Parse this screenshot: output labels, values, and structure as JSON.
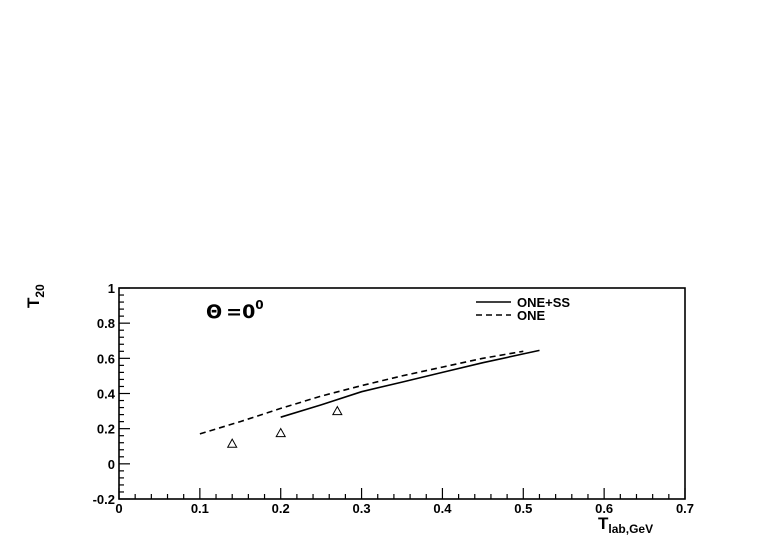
{
  "chart_data": {
    "type": "line",
    "title": "",
    "xlabel": "T",
    "xlabel_sub": "lab,GeV",
    "ylabel": "T",
    "ylabel_sub": "20",
    "xlim": [
      0,
      0.7
    ],
    "ylim": [
      -0.2,
      1.0
    ],
    "x_ticks": [
      0,
      0.1,
      0.2,
      0.3,
      0.4,
      0.5,
      0.6,
      0.7
    ],
    "x_tick_labels": [
      "0",
      "0.1",
      "0.2",
      "0.3",
      "0.4",
      "0.5",
      "0.6",
      "0.7"
    ],
    "y_ticks": [
      -0.2,
      0,
      0.2,
      0.4,
      0.6,
      0.8,
      1.0
    ],
    "y_tick_labels": [
      "-0.2",
      "0",
      "0.2",
      "0.4",
      "0.6",
      "0.8",
      "1"
    ],
    "grid": false,
    "legend_position": "top-right",
    "annotation": {
      "symbol": "Θ",
      "equals": "=0",
      "sup": "0"
    },
    "series": [
      {
        "name": "ONE+SS",
        "style": "solid",
        "color": "#000000",
        "x": [
          0.2,
          0.25,
          0.3,
          0.35,
          0.4,
          0.45,
          0.5,
          0.52
        ],
        "y": [
          0.265,
          0.335,
          0.41,
          0.465,
          0.52,
          0.575,
          0.625,
          0.645
        ]
      },
      {
        "name": "ONE",
        "style": "dashed",
        "color": "#000000",
        "x": [
          0.1,
          0.15,
          0.2,
          0.25,
          0.3,
          0.35,
          0.4,
          0.45,
          0.5
        ],
        "y": [
          0.17,
          0.24,
          0.315,
          0.385,
          0.445,
          0.5,
          0.55,
          0.6,
          0.64
        ]
      },
      {
        "name": "",
        "style": "markers",
        "marker": "open-triangle",
        "color": "#000000",
        "x": [
          0.14,
          0.2,
          0.27
        ],
        "y": [
          0.115,
          0.175,
          0.3
        ],
        "yerr": [
          0.02,
          0.02,
          0.015
        ]
      }
    ]
  }
}
